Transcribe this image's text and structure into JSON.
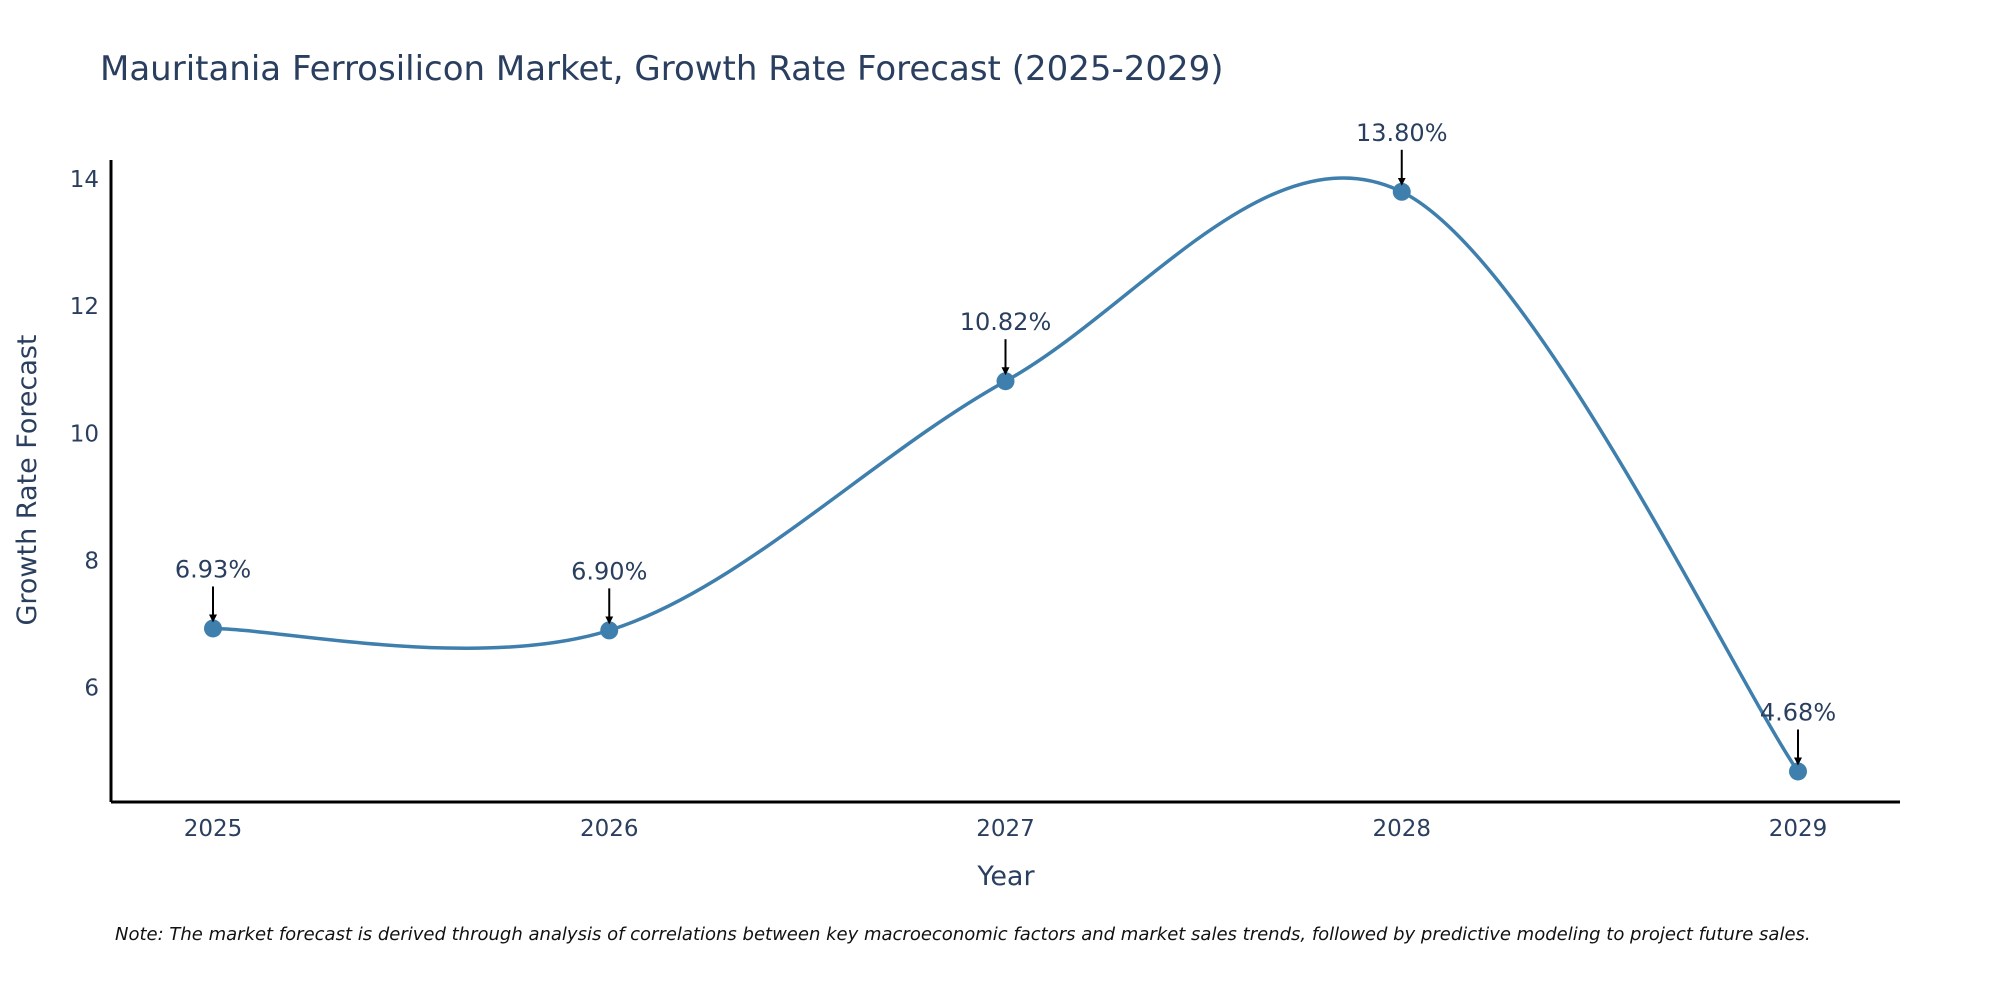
{
  "chart_data": {
    "type": "line",
    "title": "Mauritania Ferrosilicon Market, Growth Rate Forecast (2025-2029)",
    "xlabel": "Year",
    "ylabel": "Growth Rate Forecast",
    "categories": [
      "2025",
      "2026",
      "2027",
      "2028",
      "2029"
    ],
    "values": [
      6.93,
      6.9,
      10.82,
      13.8,
      4.68
    ],
    "data_labels": [
      "6.93%",
      "6.90%",
      "10.82%",
      "13.80%",
      "4.68%"
    ],
    "y_ticks": [
      6,
      8,
      10,
      12,
      14
    ],
    "ylim": [
      4.2,
      14.3
    ],
    "line_color": "#3f7fad",
    "marker_color": "#3f7fad",
    "grid": false,
    "note": "Note: The market forecast is derived through analysis of correlations between key macroeconomic factors and market sales trends, followed by predictive modeling to project future sales."
  }
}
